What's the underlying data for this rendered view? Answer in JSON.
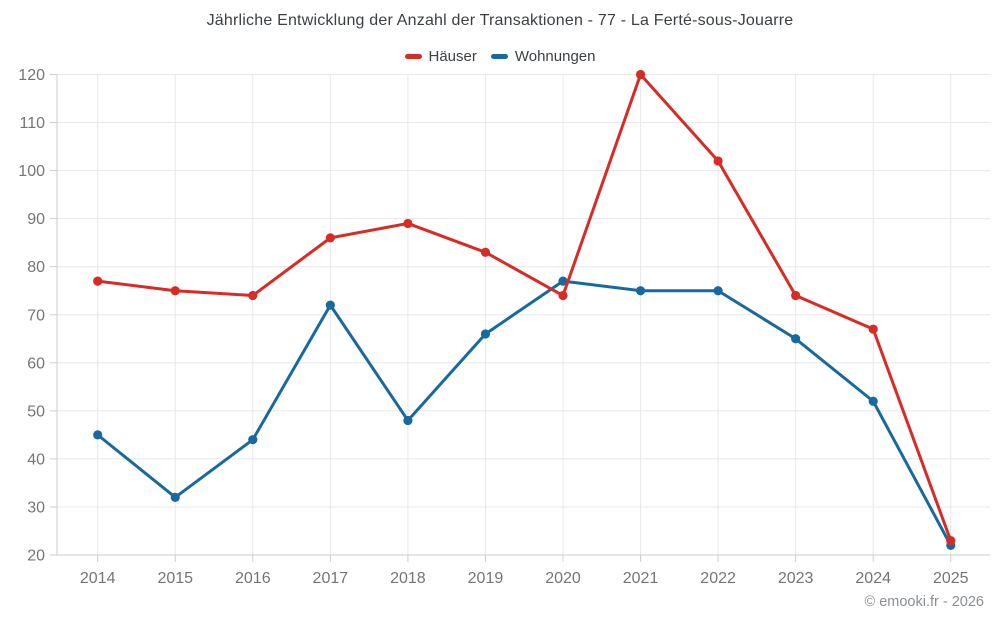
{
  "header": {
    "title": "Jährliche Entwicklung der Anzahl der Transaktionen - 77 - La Ferté-sous-Jouarre"
  },
  "legend": {
    "items": [
      {
        "label": "Häuser",
        "color": "#d92b25"
      },
      {
        "label": "Wohnungen",
        "color": "#17699f"
      }
    ]
  },
  "chart_data": {
    "type": "line",
    "title": "Jährliche Entwicklung der Anzahl der Transaktionen - 77 - La Ferté-sous-Jouarre",
    "categories": [
      "2014",
      "2015",
      "2016",
      "2017",
      "2018",
      "2019",
      "2020",
      "2021",
      "2022",
      "2023",
      "2024",
      "2025"
    ],
    "series": [
      {
        "name": "Häuser",
        "color": "#d92b25",
        "values": [
          77,
          75,
          74,
          86,
          89,
          83,
          74,
          120,
          102,
          74,
          67,
          23
        ]
      },
      {
        "name": "Wohnungen",
        "color": "#17699f",
        "values": [
          45,
          32,
          44,
          72,
          48,
          66,
          77,
          75,
          75,
          65,
          52,
          22
        ]
      }
    ],
    "xlabel": "",
    "ylabel": "",
    "ylim": [
      20,
      120
    ],
    "ytick_step": 10,
    "grid": true,
    "legend_position": "top",
    "marker": "circle",
    "colors": {
      "gridline": "#e8e8e8",
      "axis_line": "#c9cdd1",
      "tick": "#c9cdd1",
      "axis_label": "#757575"
    }
  },
  "footer": {
    "copyright": "© emooki.fr - 2026"
  }
}
